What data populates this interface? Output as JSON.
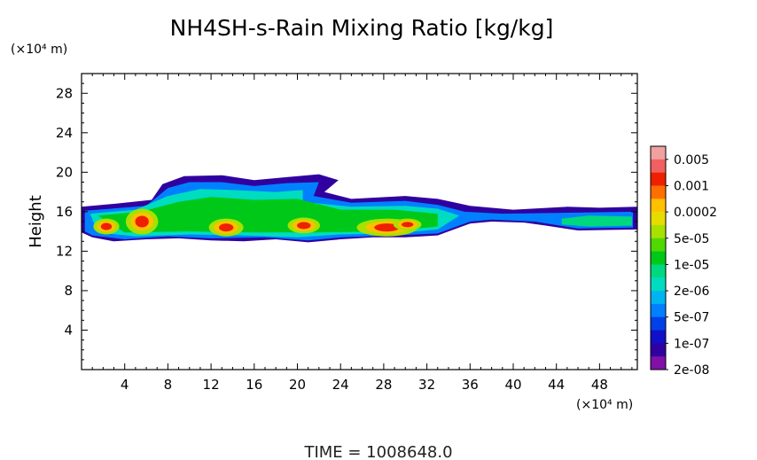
{
  "chart_data": {
    "type": "heatmap",
    "title": "NH4SH-s-Rain Mixing Ratio [kg/kg]",
    "ylabel": "Height",
    "y_unit": "(×10⁴ m)",
    "x_unit": "(×10⁴ m)",
    "xlim": [
      0,
      51.5
    ],
    "ylim": [
      0,
      30
    ],
    "x_ticks": [
      "4",
      "8",
      "12",
      "16",
      "20",
      "24",
      "28",
      "32",
      "36",
      "40",
      "44",
      "48"
    ],
    "y_ticks": [
      "4",
      "8",
      "12",
      "16",
      "20",
      "24",
      "28"
    ],
    "colorbar": {
      "labels": [
        "0.005",
        "0.001",
        "0.0002",
        "5e-05",
        "1e-05",
        "2e-06",
        "5e-07",
        "1e-07",
        "2e-08"
      ],
      "colors": [
        "#f0a0a0",
        "#f06060",
        "#ee2000",
        "#ff6e00",
        "#ffc000",
        "#e6dc00",
        "#a8e000",
        "#50d800",
        "#00c818",
        "#00d880",
        "#00dcc0",
        "#00b4f0",
        "#0080ff",
        "#0040e8",
        "#1010c8",
        "#3000a0",
        "#8010a8"
      ]
    },
    "layer": {
      "x_range": [
        0,
        51.5
      ],
      "bottom_height": 13,
      "top_height": 16.5,
      "max_height": 19.8,
      "peak_value": "0.001"
    },
    "footer": "TIME = 1008648.0"
  }
}
